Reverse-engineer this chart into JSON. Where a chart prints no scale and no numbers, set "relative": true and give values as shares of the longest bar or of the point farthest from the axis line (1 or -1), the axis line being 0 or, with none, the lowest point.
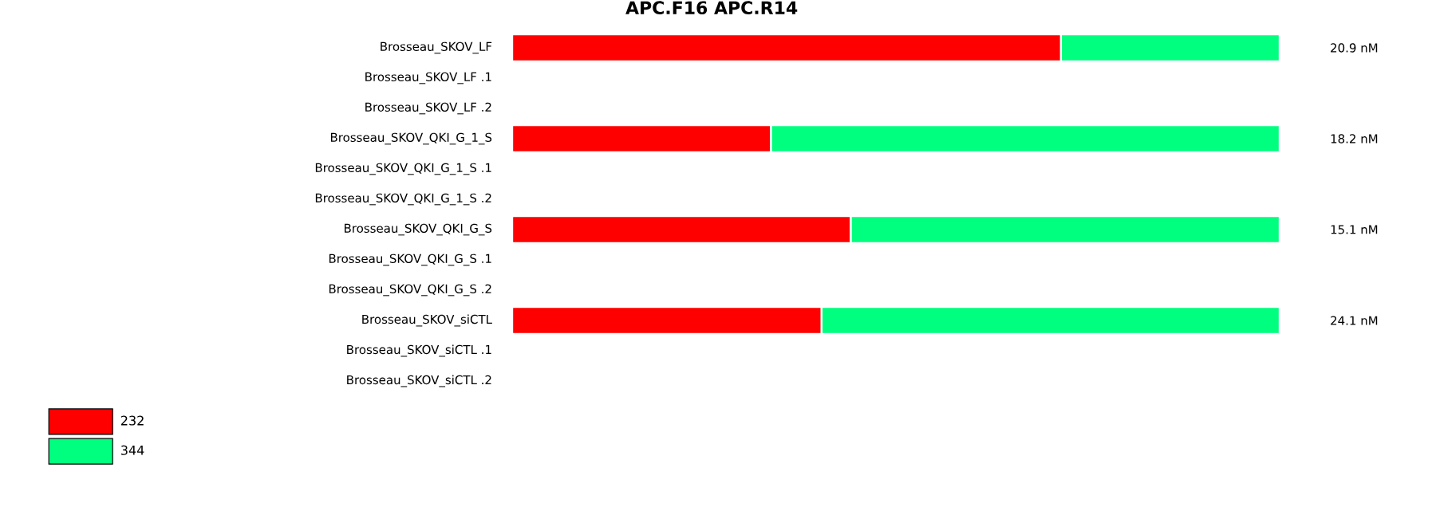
{
  "chart_data": {
    "type": "bar",
    "orientation": "horizontal",
    "stacked": true,
    "relative": true,
    "title": "APC.F16  APC.R14",
    "categories": [
      "Brosseau_SKOV_LF",
      "Brosseau_SKOV_LF .1",
      "Brosseau_SKOV_LF .2",
      "Brosseau_SKOV_QKI_G_1_S",
      "Brosseau_SKOV_QKI_G_1_S .1",
      "Brosseau_SKOV_QKI_G_1_S .2",
      "Brosseau_SKOV_QKI_G_S",
      "Brosseau_SKOV_QKI_G_S .1",
      "Brosseau_SKOV_QKI_G_S .2",
      "Brosseau_SKOV_siCTL",
      "Brosseau_SKOV_siCTL .1",
      "Brosseau_SKOV_siCTL .2"
    ],
    "series": [
      {
        "name": "232",
        "color": "#ff0000",
        "values": [
          0.715,
          null,
          null,
          0.337,
          null,
          null,
          0.441,
          null,
          null,
          0.403,
          null,
          null
        ]
      },
      {
        "name": "344",
        "color": "#00ff7f",
        "values": [
          0.285,
          null,
          null,
          0.663,
          null,
          null,
          0.559,
          null,
          null,
          0.597,
          null,
          null
        ]
      }
    ],
    "annotations": [
      "20.9 nM",
      "18.2 nM",
      "15.1 nM",
      "24.1 nM"
    ],
    "legend": "bottom left"
  }
}
